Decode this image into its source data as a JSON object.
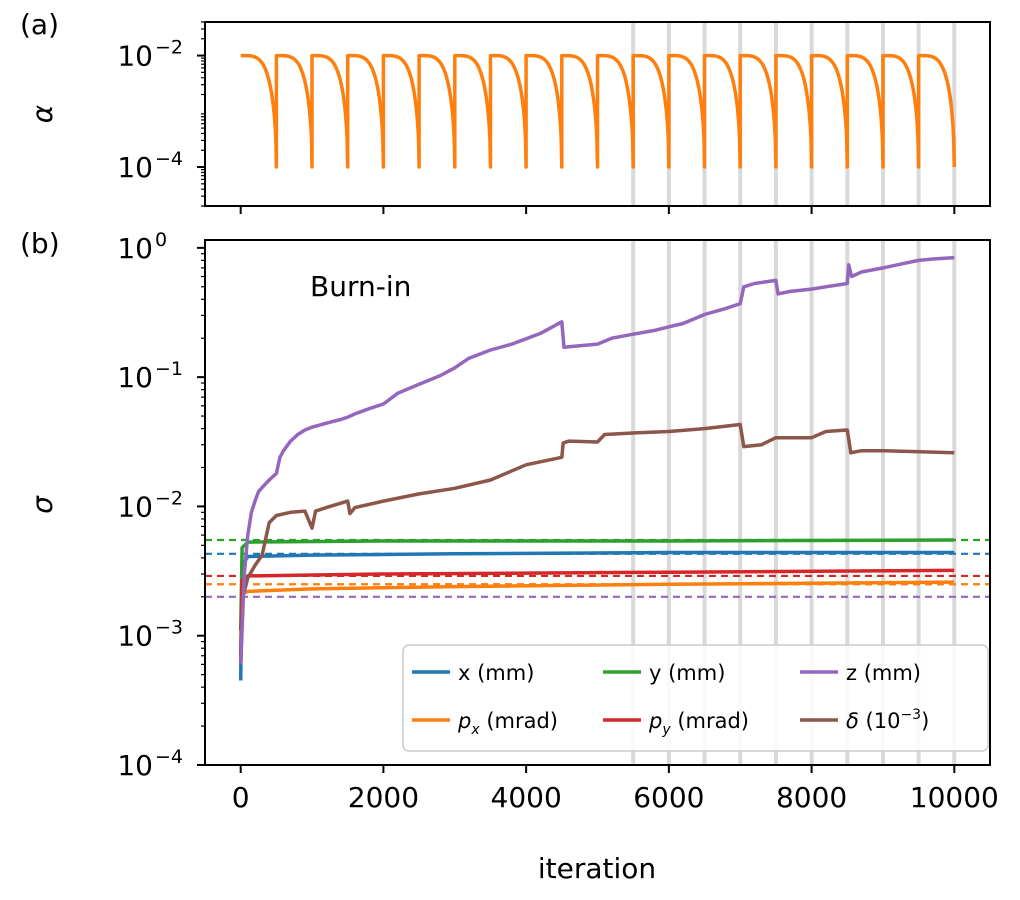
{
  "chart_data": [
    {
      "panel_label": "(a)",
      "type": "line",
      "ylabel": "α",
      "yscale": "log",
      "ylim": [
        2e-05,
        0.04
      ],
      "xlim": [
        -500,
        10500
      ],
      "yticks": [
        {
          "value": 0.01,
          "base": "10",
          "exp": "−2"
        },
        {
          "value": 0.0001,
          "base": "10",
          "exp": "−4"
        }
      ],
      "cycle_length": 500,
      "alpha_max": 0.01,
      "alpha_min": 0.0001,
      "color": "#ff7f0e"
    },
    {
      "panel_label": "(b)",
      "type": "line",
      "ylabel": "σ",
      "xlabel": "iteration",
      "yscale": "log",
      "ylim": [
        0.0001,
        1.15
      ],
      "xlim": [
        -500,
        10500
      ],
      "xticks": [
        0,
        2000,
        4000,
        6000,
        8000,
        10000
      ],
      "xtick_labels": [
        "0",
        "2000",
        "4000",
        "6000",
        "8000",
        "10000"
      ],
      "yticks": [
        {
          "value": 1,
          "base": "10",
          "exp": "0"
        },
        {
          "value": 0.1,
          "base": "10",
          "exp": "−1"
        },
        {
          "value": 0.01,
          "base": "10",
          "exp": "−2"
        },
        {
          "value": 0.001,
          "base": "10",
          "exp": "−3"
        },
        {
          "value": 0.0001,
          "base": "10",
          "exp": "−4"
        }
      ],
      "annotation": "Burn-in",
      "legend_position": "lower-right",
      "vertical_markers": [
        5500,
        6000,
        6500,
        7000,
        7500,
        8000,
        8500,
        9000,
        9500,
        10000
      ],
      "series": [
        {
          "key": "x",
          "label": "x (mm)",
          "color": "#1f77b4",
          "target": 0.0043,
          "points": [
            [
              0,
              0.00045
            ],
            [
              20,
              0.0035
            ],
            [
              100,
              0.0041
            ],
            [
              1000,
              0.0042
            ],
            [
              3000,
              0.0043
            ],
            [
              6000,
              0.0044
            ],
            [
              10000,
              0.0044
            ]
          ]
        },
        {
          "key": "y",
          "label": "y (mm)",
          "color": "#2ca02c",
          "target": 0.0055,
          "points": [
            [
              0,
              0.0011
            ],
            [
              20,
              0.0048
            ],
            [
              100,
              0.0053
            ],
            [
              2000,
              0.0054
            ],
            [
              6000,
              0.0054
            ],
            [
              10000,
              0.0055
            ]
          ]
        },
        {
          "key": "z",
          "label": "z (mm)",
          "color": "#9467bd",
          "target": 0.002,
          "points": [
            [
              0,
              0.0006
            ],
            [
              50,
              0.003
            ],
            [
              100,
              0.006
            ],
            [
              150,
              0.009
            ],
            [
              200,
              0.011
            ],
            [
              250,
              0.013
            ],
            [
              300,
              0.014
            ],
            [
              350,
              0.015
            ],
            [
              400,
              0.016
            ],
            [
              500,
              0.018
            ],
            [
              550,
              0.024
            ],
            [
              600,
              0.027
            ],
            [
              700,
              0.032
            ],
            [
              800,
              0.036
            ],
            [
              900,
              0.039
            ],
            [
              1000,
              0.041
            ],
            [
              1200,
              0.044
            ],
            [
              1400,
              0.047
            ],
            [
              1500,
              0.049
            ],
            [
              1600,
              0.052
            ],
            [
              1800,
              0.057
            ],
            [
              2000,
              0.062
            ],
            [
              2200,
              0.075
            ],
            [
              2500,
              0.088
            ],
            [
              2800,
              0.103
            ],
            [
              3000,
              0.118
            ],
            [
              3200,
              0.14
            ],
            [
              3500,
              0.162
            ],
            [
              3800,
              0.18
            ],
            [
              4000,
              0.198
            ],
            [
              4200,
              0.218
            ],
            [
              4500,
              0.268
            ],
            [
              4530,
              0.17
            ],
            [
              4600,
              0.172
            ],
            [
              5000,
              0.18
            ],
            [
              5200,
              0.2
            ],
            [
              5500,
              0.215
            ],
            [
              5800,
              0.23
            ],
            [
              6000,
              0.245
            ],
            [
              6200,
              0.26
            ],
            [
              6500,
              0.305
            ],
            [
              6800,
              0.34
            ],
            [
              7000,
              0.37
            ],
            [
              7050,
              0.5
            ],
            [
              7200,
              0.53
            ],
            [
              7500,
              0.56
            ],
            [
              7530,
              0.44
            ],
            [
              7700,
              0.46
            ],
            [
              8000,
              0.48
            ],
            [
              8200,
              0.5
            ],
            [
              8500,
              0.53
            ],
            [
              8520,
              0.74
            ],
            [
              8560,
              0.6
            ],
            [
              8700,
              0.65
            ],
            [
              9000,
              0.7
            ],
            [
              9300,
              0.76
            ],
            [
              9500,
              0.8
            ],
            [
              9700,
              0.82
            ],
            [
              10000,
              0.84
            ]
          ]
        },
        {
          "key": "px",
          "label": "$p_x$ (mrad)",
          "label_parts": [
            "p",
            "x",
            " (mrad)"
          ],
          "color": "#ff7f0e",
          "target": 0.0025,
          "points": [
            [
              0,
              0.0006
            ],
            [
              20,
              0.0021
            ],
            [
              100,
              0.0022
            ],
            [
              1000,
              0.0023
            ],
            [
              3000,
              0.0024
            ],
            [
              6000,
              0.0025
            ],
            [
              10000,
              0.0026
            ]
          ]
        },
        {
          "key": "py",
          "label": "$p_y$ (mrad)",
          "label_parts": [
            "p",
            "y",
            " (mrad)"
          ],
          "color": "#d62728",
          "target": 0.0029,
          "points": [
            [
              0,
              0.0007
            ],
            [
              20,
              0.0027
            ],
            [
              100,
              0.0029
            ],
            [
              2000,
              0.003
            ],
            [
              6000,
              0.0031
            ],
            [
              10000,
              0.0032
            ]
          ]
        },
        {
          "key": "delta",
          "label": "δ (10⁻³)",
          "label_parts": [
            "δ (10",
            "−3",
            ")"
          ],
          "color": "#8c564b",
          "target": null,
          "points": [
            [
              0,
              0.0006
            ],
            [
              30,
              0.002
            ],
            [
              100,
              0.0028
            ],
            [
              200,
              0.0035
            ],
            [
              300,
              0.0042
            ],
            [
              400,
              0.0075
            ],
            [
              500,
              0.0085
            ],
            [
              700,
              0.009
            ],
            [
              900,
              0.0092
            ],
            [
              1000,
              0.0068
            ],
            [
              1050,
              0.0092
            ],
            [
              1200,
              0.0098
            ],
            [
              1500,
              0.011
            ],
            [
              1530,
              0.0088
            ],
            [
              1600,
              0.0098
            ],
            [
              2000,
              0.011
            ],
            [
              2500,
              0.0125
            ],
            [
              3000,
              0.0138
            ],
            [
              3500,
              0.016
            ],
            [
              4000,
              0.021
            ],
            [
              4500,
              0.024
            ],
            [
              4520,
              0.031
            ],
            [
              4600,
              0.032
            ],
            [
              5000,
              0.0315
            ],
            [
              5100,
              0.036
            ],
            [
              5500,
              0.037
            ],
            [
              6000,
              0.038
            ],
            [
              6500,
              0.04
            ],
            [
              7000,
              0.043
            ],
            [
              7050,
              0.029
            ],
            [
              7300,
              0.03
            ],
            [
              7500,
              0.034
            ],
            [
              8000,
              0.034
            ],
            [
              8200,
              0.038
            ],
            [
              8500,
              0.039
            ],
            [
              8550,
              0.026
            ],
            [
              8700,
              0.027
            ],
            [
              9000,
              0.027
            ],
            [
              10000,
              0.026
            ]
          ]
        }
      ]
    }
  ]
}
